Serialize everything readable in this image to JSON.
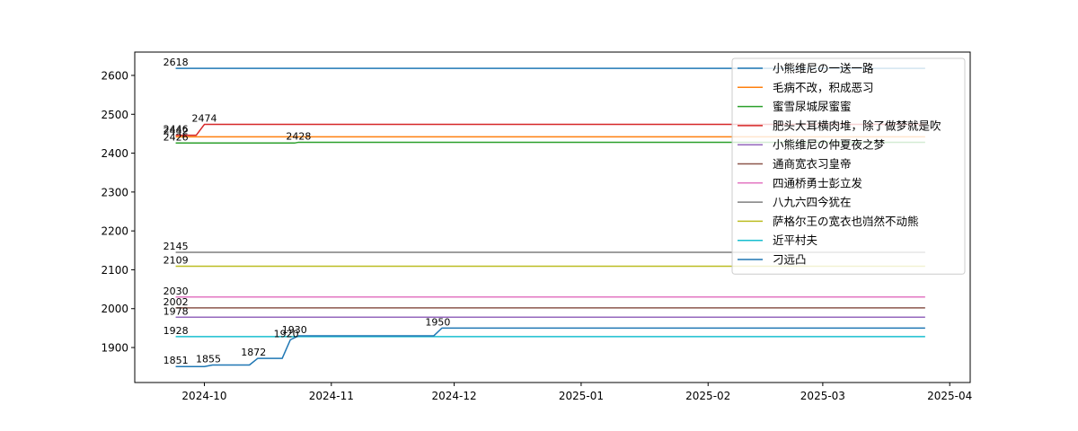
{
  "chart_data": {
    "type": "line",
    "title": "",
    "xlabel": "",
    "ylabel": "",
    "x_range": [
      "2024-09-14",
      "2025-04-06"
    ],
    "ylim": [
      1810,
      2660
    ],
    "grid": false,
    "legend_position": "upper-right",
    "x_ticks": [
      {
        "date": "2024-10-01",
        "label": "2024-10"
      },
      {
        "date": "2024-11-01",
        "label": "2024-11"
      },
      {
        "date": "2024-12-01",
        "label": "2024-12"
      },
      {
        "date": "2025-01-01",
        "label": "2025-01"
      },
      {
        "date": "2025-02-01",
        "label": "2025-02"
      },
      {
        "date": "2025-03-01",
        "label": "2025-03"
      },
      {
        "date": "2025-04-01",
        "label": "2025-04"
      }
    ],
    "y_ticks": [
      {
        "value": 1900,
        "label": "1900"
      },
      {
        "value": 2000,
        "label": "2000"
      },
      {
        "value": 2100,
        "label": "2100"
      },
      {
        "value": 2200,
        "label": "2200"
      },
      {
        "value": 2300,
        "label": "2300"
      },
      {
        "value": 2400,
        "label": "2400"
      },
      {
        "value": 2500,
        "label": "2500"
      },
      {
        "value": 2600,
        "label": "2600"
      }
    ],
    "series": [
      {
        "name": "小熊维尼の一送一路",
        "color": "#1f77b4",
        "points": [
          [
            "2024-09-24",
            2618
          ],
          [
            "2025-03-26",
            2618
          ]
        ],
        "labels": [
          {
            "date": "2024-09-24",
            "value": 2618,
            "text": "2618"
          }
        ]
      },
      {
        "name": "毛病不改，积成恶习",
        "color": "#ff7f0e",
        "points": [
          [
            "2024-09-24",
            2442
          ],
          [
            "2025-03-26",
            2442
          ]
        ],
        "labels": [
          {
            "date": "2024-09-24",
            "value": 2442,
            "text": "2442"
          }
        ]
      },
      {
        "name": "蜜雪尿城尿蜜蜜",
        "color": "#2ca02c",
        "points": [
          [
            "2024-09-24",
            2426
          ],
          [
            "2024-10-23",
            2426
          ],
          [
            "2024-10-24",
            2428
          ],
          [
            "2025-03-26",
            2428
          ]
        ],
        "labels": [
          {
            "date": "2024-09-24",
            "value": 2426,
            "text": "2426"
          },
          {
            "date": "2024-10-24",
            "value": 2428,
            "text": "2428"
          }
        ]
      },
      {
        "name": "肥头大耳横肉堆，除了做梦就是吹",
        "color": "#d62728",
        "points": [
          [
            "2024-09-24",
            2446
          ],
          [
            "2024-09-29",
            2446
          ],
          [
            "2024-10-01",
            2474
          ],
          [
            "2025-03-26",
            2474
          ]
        ],
        "labels": [
          {
            "date": "2024-09-24",
            "value": 2446,
            "text": "2446"
          },
          {
            "date": "2024-10-01",
            "value": 2474,
            "text": "2474"
          }
        ]
      },
      {
        "name": "小熊维尼の仲夏夜之梦",
        "color": "#9467bd",
        "points": [
          [
            "2024-09-24",
            1978
          ],
          [
            "2025-03-26",
            1978
          ]
        ],
        "labels": [
          {
            "date": "2024-09-24",
            "value": 1978,
            "text": "1978"
          }
        ]
      },
      {
        "name": "通商宽衣习皇帝",
        "color": "#8c564b",
        "points": [
          [
            "2024-09-24",
            2002
          ],
          [
            "2025-03-26",
            2002
          ]
        ],
        "labels": [
          {
            "date": "2024-09-24",
            "value": 2002,
            "text": "2002"
          }
        ]
      },
      {
        "name": "四通桥勇士彭立发",
        "color": "#e377c2",
        "points": [
          [
            "2024-09-24",
            2030
          ],
          [
            "2025-03-26",
            2030
          ]
        ],
        "labels": [
          {
            "date": "2024-09-24",
            "value": 2030,
            "text": "2030"
          }
        ]
      },
      {
        "name": "八九六四今犹在",
        "color": "#7f7f7f",
        "points": [
          [
            "2024-09-24",
            2145
          ],
          [
            "2025-03-26",
            2145
          ]
        ],
        "labels": [
          {
            "date": "2024-09-24",
            "value": 2145,
            "text": "2145"
          }
        ]
      },
      {
        "name": "萨格尔王の宽衣也岿然不动熊",
        "color": "#bcbd22",
        "points": [
          [
            "2024-09-24",
            2109
          ],
          [
            "2025-03-26",
            2109
          ]
        ],
        "labels": [
          {
            "date": "2024-09-24",
            "value": 2109,
            "text": "2109"
          }
        ]
      },
      {
        "name": "近平村夫",
        "color": "#17becf",
        "points": [
          [
            "2024-09-24",
            1928
          ],
          [
            "2025-03-26",
            1928
          ]
        ],
        "labels": [
          {
            "date": "2024-09-24",
            "value": 1928,
            "text": "1928"
          }
        ]
      },
      {
        "name": "刁远凸",
        "color": "#1f77b4",
        "points": [
          [
            "2024-09-24",
            1851
          ],
          [
            "2024-10-01",
            1851
          ],
          [
            "2024-10-03",
            1855
          ],
          [
            "2024-10-12",
            1855
          ],
          [
            "2024-10-14",
            1872
          ],
          [
            "2024-10-20",
            1872
          ],
          [
            "2024-10-22",
            1920
          ],
          [
            "2024-10-24",
            1930
          ],
          [
            "2024-11-26",
            1930
          ],
          [
            "2024-11-28",
            1950
          ],
          [
            "2025-03-26",
            1950
          ]
        ],
        "labels": [
          {
            "date": "2024-09-24",
            "value": 1851,
            "text": "1851"
          },
          {
            "date": "2024-10-02",
            "value": 1855,
            "text": "1855"
          },
          {
            "date": "2024-10-13",
            "value": 1872,
            "text": "1872"
          },
          {
            "date": "2024-10-21",
            "value": 1920,
            "text": "1920"
          },
          {
            "date": "2024-10-23",
            "value": 1930,
            "text": "1930"
          },
          {
            "date": "2024-11-27",
            "value": 1950,
            "text": "1950"
          }
        ]
      }
    ]
  }
}
